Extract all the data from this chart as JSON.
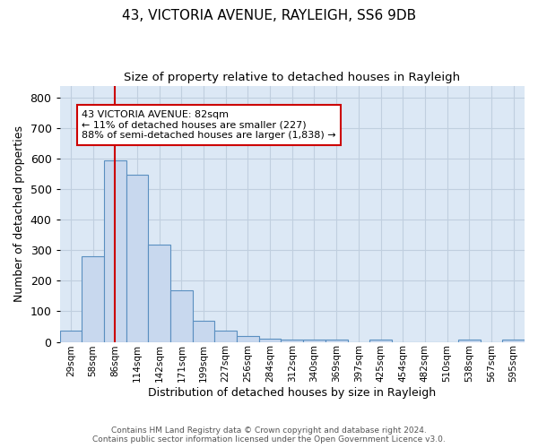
{
  "title": "43, VICTORIA AVENUE, RAYLEIGH, SS6 9DB",
  "subtitle": "Size of property relative to detached houses in Rayleigh",
  "xlabel": "Distribution of detached houses by size in Rayleigh",
  "ylabel": "Number of detached properties",
  "categories": [
    "29sqm",
    "58sqm",
    "86sqm",
    "114sqm",
    "142sqm",
    "171sqm",
    "199sqm",
    "227sqm",
    "256sqm",
    "284sqm",
    "312sqm",
    "340sqm",
    "369sqm",
    "397sqm",
    "425sqm",
    "454sqm",
    "482sqm",
    "510sqm",
    "538sqm",
    "567sqm",
    "595sqm"
  ],
  "values": [
    38,
    280,
    595,
    548,
    320,
    168,
    68,
    38,
    20,
    10,
    8,
    8,
    8,
    0,
    8,
    0,
    0,
    0,
    8,
    0,
    8
  ],
  "bar_color": "#c8d8ee",
  "bar_edge_color": "#5a8fc0",
  "property_line_x": 2,
  "property_line_color": "#cc0000",
  "annotation_text": "43 VICTORIA AVENUE: 82sqm\n← 11% of detached houses are smaller (227)\n88% of semi-detached houses are larger (1,838) →",
  "annotation_box_color": "#cc0000",
  "ylim": [
    0,
    840
  ],
  "yticks": [
    0,
    100,
    200,
    300,
    400,
    500,
    600,
    700,
    800
  ],
  "grid_color": "#c0cfdf",
  "background_color": "#dce8f5",
  "footer_line1": "Contains HM Land Registry data © Crown copyright and database right 2024.",
  "footer_line2": "Contains public sector information licensed under the Open Government Licence v3.0.",
  "title_fontsize": 11,
  "subtitle_fontsize": 9.5
}
